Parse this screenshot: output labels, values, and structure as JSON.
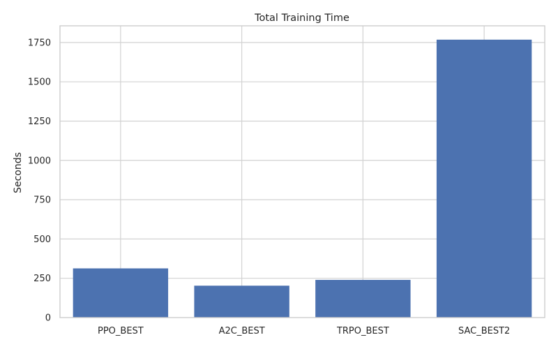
{
  "chart_data": {
    "type": "bar",
    "title": "Total Training Time",
    "xlabel": "",
    "ylabel": "Seconds",
    "categories": [
      "PPO_BEST",
      "A2C_BEST",
      "TRPO_BEST",
      "SAC_BEST2"
    ],
    "values": [
      313,
      203,
      240,
      1768
    ],
    "ylim": [
      0,
      1856
    ],
    "yticks": [
      0,
      250,
      500,
      750,
      1000,
      1250,
      1500,
      1750
    ],
    "grid": true,
    "bar_color": "#4c72b0"
  }
}
